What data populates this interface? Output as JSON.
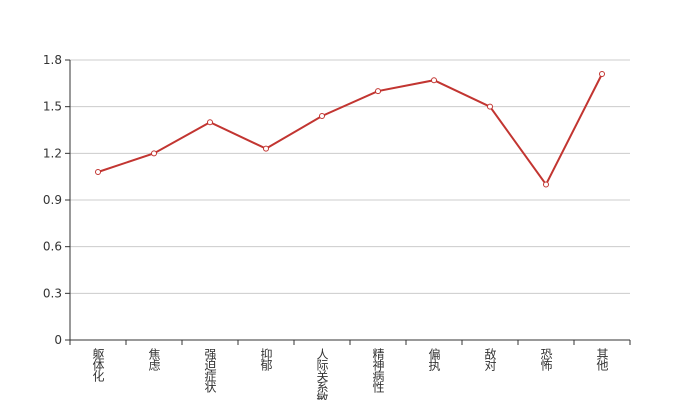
{
  "chart_data": {
    "type": "line",
    "categories": [
      "躯体化",
      "焦虑",
      "强迫症状",
      "抑郁",
      "人际关系敏感",
      "精神病性",
      "偏执",
      "敌对",
      "恐怖",
      "其他"
    ],
    "values": [
      1.08,
      1.2,
      1.4,
      1.23,
      1.44,
      1.6,
      1.67,
      1.5,
      1.0,
      1.71
    ],
    "color": "#c23531",
    "ylim": [
      0,
      1.8
    ],
    "yticks": [
      0,
      0.3,
      0.6,
      0.9,
      1.2,
      1.5,
      1.8
    ],
    "grid": true
  }
}
